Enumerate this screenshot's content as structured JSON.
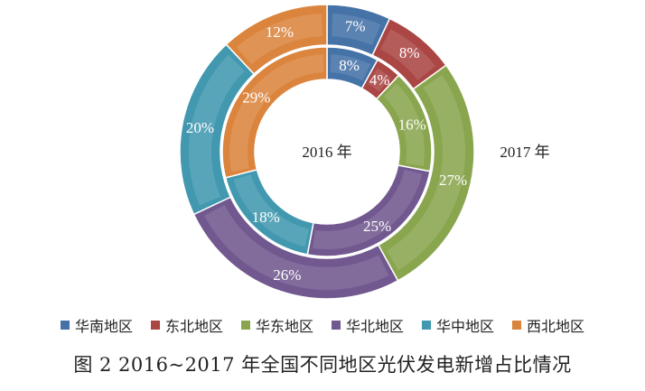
{
  "chart_data": {
    "type": "pie",
    "subtype": "double-donut",
    "categories": [
      "华南地区",
      "东北地区",
      "华东地区",
      "华北地区",
      "华中地区",
      "西北地区"
    ],
    "colors": [
      "#4572A7",
      "#AA4643",
      "#89A54E",
      "#71588F",
      "#4198AF",
      "#DB843D"
    ],
    "series": [
      {
        "name": "2016 年",
        "ring": "inner",
        "values": [
          8,
          4,
          16,
          25,
          18,
          29
        ],
        "labels": [
          "8%",
          "4%",
          "16%",
          "25%",
          "18%",
          "29%"
        ]
      },
      {
        "name": "2017 年",
        "ring": "outer",
        "values": [
          7,
          8,
          27,
          26,
          20,
          12
        ],
        "labels": [
          "7%",
          "8%",
          "27%",
          "26%",
          "20%",
          "12%"
        ]
      }
    ],
    "title": "图 2  2016~2017 年全国不同地区光伏发电新增占比情况",
    "legend_position": "bottom"
  }
}
